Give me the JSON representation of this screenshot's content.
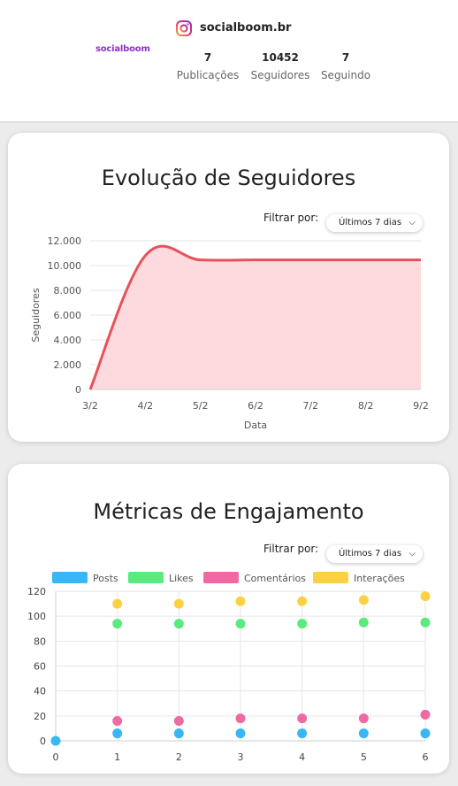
{
  "profile": {
    "logo_text": "socialboom",
    "icon": "instagram-icon",
    "username": "socialboom.br",
    "stats": [
      {
        "value": "7",
        "label": "Publicações"
      },
      {
        "value": "10452",
        "label": "Seguidores"
      },
      {
        "value": "7",
        "label": "Seguindo"
      }
    ]
  },
  "followers_card": {
    "title": "Evolução de Seguidores",
    "filter_label": "Filtrar por:",
    "filter_value": "Últimos 7 dias"
  },
  "engagement_card": {
    "title": "Métricas de Engajamento",
    "filter_label": "Filtrar por:",
    "filter_value": "Últimos 7 dias"
  },
  "colors": {
    "line": "#e8515a",
    "area": "#fcdadd",
    "posts": "#38b6f5",
    "likes": "#5aea7d",
    "comentarios": "#ef6aa2",
    "interacoes": "#fbd143"
  },
  "chart_data": [
    {
      "type": "area",
      "xlabel": "Data",
      "ylabel": "Seguidores",
      "categories": [
        "3/2",
        "4/2",
        "5/2",
        "6/2",
        "7/2",
        "8/2",
        "9/2"
      ],
      "y_tick_labels": [
        "0",
        "2.000",
        "4.000",
        "6.000",
        "8.000",
        "10.000",
        "12.000"
      ],
      "ylim": [
        0,
        12000
      ],
      "series": [
        {
          "values": [
            0,
            10800,
            10452,
            10452,
            10452,
            10452,
            10452
          ]
        }
      ],
      "grid": true
    },
    {
      "type": "scatter",
      "x": [
        0,
        1,
        2,
        3,
        4,
        5,
        6
      ],
      "ylim": [
        0,
        120
      ],
      "y_ticks": [
        0,
        20,
        40,
        60,
        80,
        100,
        120
      ],
      "legend_position": "top",
      "series": [
        {
          "name": "Posts",
          "values": [
            0,
            6,
            6,
            6,
            6,
            6,
            6
          ]
        },
        {
          "name": "Likes",
          "values": [
            null,
            94,
            94,
            94,
            94,
            95,
            95
          ]
        },
        {
          "name": "Comentários",
          "values": [
            null,
            16,
            16,
            18,
            18,
            18,
            21
          ]
        },
        {
          "name": "Interações",
          "values": [
            null,
            110,
            110,
            112,
            112,
            113,
            116
          ]
        }
      ],
      "grid": true
    }
  ]
}
